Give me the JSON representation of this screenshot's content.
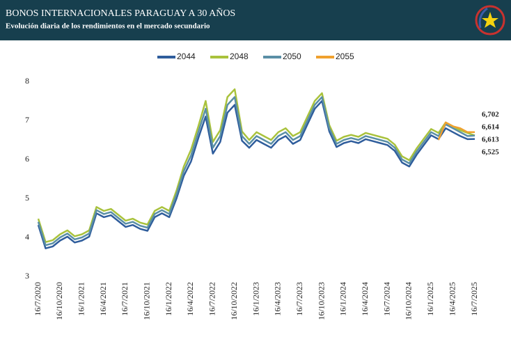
{
  "chart_data": {
    "type": "line",
    "title": "BONOS INTERNACIONALES PARAGUAY A 30 AÑOS",
    "subtitle": "Evolución diaria de los rendimientos en el mercado secundario",
    "categories": [
      "16/7/2020",
      null,
      null,
      "16/10/2020",
      null,
      null,
      "16/1/2021",
      null,
      null,
      "16/4/2021",
      null,
      null,
      "16/7/2021",
      null,
      null,
      "16/10/2021",
      null,
      null,
      "16/1/2022",
      null,
      null,
      "16/4/2022",
      null,
      null,
      "16/7/2022",
      null,
      null,
      "16/10/2022",
      null,
      null,
      "16/1/2023",
      null,
      null,
      "16/4/2023",
      null,
      null,
      "16/7/2023",
      null,
      null,
      "16/10/2023",
      null,
      null,
      "16/1/2024",
      null,
      null,
      "16/4/2024",
      null,
      null,
      "16/7/2024",
      null,
      null,
      "16/10/2024",
      null,
      null,
      "16/1/2025",
      null,
      null,
      "16/4/2025",
      null,
      null,
      "16/7/2025"
    ],
    "series": [
      {
        "name": "2044",
        "color": "#2f5d9c",
        "values": [
          4.32,
          3.72,
          3.77,
          3.92,
          4.02,
          3.87,
          3.92,
          4.02,
          4.62,
          4.52,
          4.57,
          4.42,
          4.27,
          4.32,
          4.22,
          4.17,
          4.52,
          4.62,
          4.52,
          5.0,
          5.58,
          5.95,
          6.55,
          7.1,
          6.15,
          6.45,
          7.2,
          7.4,
          6.48,
          6.3,
          6.5,
          6.4,
          6.3,
          6.5,
          6.6,
          6.4,
          6.5,
          6.9,
          7.3,
          7.5,
          6.72,
          6.32,
          6.42,
          6.47,
          6.42,
          6.52,
          6.47,
          6.42,
          6.37,
          6.22,
          5.92,
          5.82,
          6.12,
          6.37,
          6.62,
          6.52,
          6.8,
          6.7,
          6.6,
          6.52,
          6.525
        ],
        "value_labels": [
          null,
          null,
          null,
          null,
          null,
          null,
          null,
          null,
          null,
          null,
          null,
          null,
          null,
          null,
          null,
          null,
          null,
          null,
          null,
          null,
          null,
          null,
          null,
          null,
          null,
          null,
          null,
          null,
          null,
          null,
          null,
          null,
          null,
          null,
          null,
          null,
          null,
          null,
          null,
          null,
          null,
          null,
          null,
          null,
          null,
          null,
          null,
          null,
          null,
          null,
          null,
          null,
          null,
          null,
          null,
          null,
          null,
          null,
          null,
          null,
          "6,525"
        ]
      },
      {
        "name": "2048",
        "color": "#a9c23c",
        "values": [
          4.48,
          3.88,
          3.93,
          4.08,
          4.18,
          4.03,
          4.08,
          4.18,
          4.78,
          4.68,
          4.73,
          4.58,
          4.43,
          4.48,
          4.38,
          4.33,
          4.68,
          4.78,
          4.68,
          5.2,
          5.82,
          6.25,
          6.85,
          7.5,
          6.45,
          6.75,
          7.6,
          7.8,
          6.72,
          6.5,
          6.7,
          6.6,
          6.5,
          6.7,
          6.8,
          6.6,
          6.7,
          7.1,
          7.5,
          7.7,
          6.88,
          6.48,
          6.58,
          6.63,
          6.58,
          6.68,
          6.63,
          6.58,
          6.53,
          6.38,
          6.08,
          5.98,
          6.28,
          6.53,
          6.78,
          6.68,
          6.95,
          6.85,
          6.75,
          6.68,
          6.614
        ],
        "value_labels": [
          null,
          null,
          null,
          null,
          null,
          null,
          null,
          null,
          null,
          null,
          null,
          null,
          null,
          null,
          null,
          null,
          null,
          null,
          null,
          null,
          null,
          null,
          null,
          null,
          null,
          null,
          null,
          null,
          null,
          null,
          null,
          null,
          null,
          null,
          null,
          null,
          null,
          null,
          null,
          null,
          null,
          null,
          null,
          null,
          null,
          null,
          null,
          null,
          null,
          null,
          null,
          null,
          null,
          null,
          null,
          null,
          null,
          null,
          null,
          null,
          "6,614"
        ]
      },
      {
        "name": "2050",
        "color": "#5a8fa6",
        "values": [
          4.4,
          3.8,
          3.85,
          4.0,
          4.1,
          3.95,
          4.0,
          4.1,
          4.7,
          4.6,
          4.65,
          4.5,
          4.35,
          4.4,
          4.3,
          4.25,
          4.6,
          4.7,
          4.6,
          5.1,
          5.7,
          6.1,
          6.7,
          7.3,
          6.3,
          6.6,
          7.4,
          7.6,
          6.6,
          6.4,
          6.6,
          6.5,
          6.4,
          6.6,
          6.7,
          6.5,
          6.6,
          7.0,
          7.4,
          7.6,
          6.8,
          6.4,
          6.5,
          6.55,
          6.5,
          6.6,
          6.55,
          6.5,
          6.45,
          6.3,
          6.0,
          5.9,
          6.2,
          6.45,
          6.7,
          6.6,
          6.9,
          6.8,
          6.7,
          6.6,
          6.613
        ],
        "value_labels": [
          null,
          null,
          null,
          null,
          null,
          null,
          null,
          null,
          null,
          null,
          null,
          null,
          null,
          null,
          null,
          null,
          null,
          null,
          null,
          null,
          null,
          null,
          null,
          null,
          null,
          null,
          null,
          null,
          null,
          null,
          null,
          null,
          null,
          null,
          null,
          null,
          null,
          null,
          null,
          null,
          null,
          null,
          null,
          null,
          null,
          null,
          null,
          null,
          null,
          null,
          null,
          null,
          null,
          null,
          null,
          null,
          null,
          null,
          null,
          null,
          "6,613"
        ]
      },
      {
        "name": "2055",
        "color": "#f0a12e",
        "values": [
          null,
          null,
          null,
          null,
          null,
          null,
          null,
          null,
          null,
          null,
          null,
          null,
          null,
          null,
          null,
          null,
          null,
          null,
          null,
          null,
          null,
          null,
          null,
          null,
          null,
          null,
          null,
          null,
          null,
          null,
          null,
          null,
          null,
          null,
          null,
          null,
          null,
          null,
          null,
          null,
          null,
          null,
          null,
          null,
          null,
          null,
          null,
          null,
          null,
          null,
          null,
          null,
          null,
          null,
          null,
          6.5,
          6.95,
          6.85,
          6.8,
          6.7,
          6.702
        ],
        "value_labels": [
          null,
          null,
          null,
          null,
          null,
          null,
          null,
          null,
          null,
          null,
          null,
          null,
          null,
          null,
          null,
          null,
          null,
          null,
          null,
          null,
          null,
          null,
          null,
          null,
          null,
          null,
          null,
          null,
          null,
          null,
          null,
          null,
          null,
          null,
          null,
          null,
          null,
          null,
          null,
          null,
          null,
          null,
          null,
          null,
          null,
          null,
          null,
          null,
          null,
          null,
          null,
          null,
          null,
          null,
          null,
          null,
          null,
          null,
          null,
          null,
          "6,702"
        ]
      }
    ],
    "ylim": [
      3,
      8
    ],
    "yticks": [
      3,
      4,
      5,
      6,
      7,
      8
    ],
    "grid": false,
    "legend": "top"
  }
}
